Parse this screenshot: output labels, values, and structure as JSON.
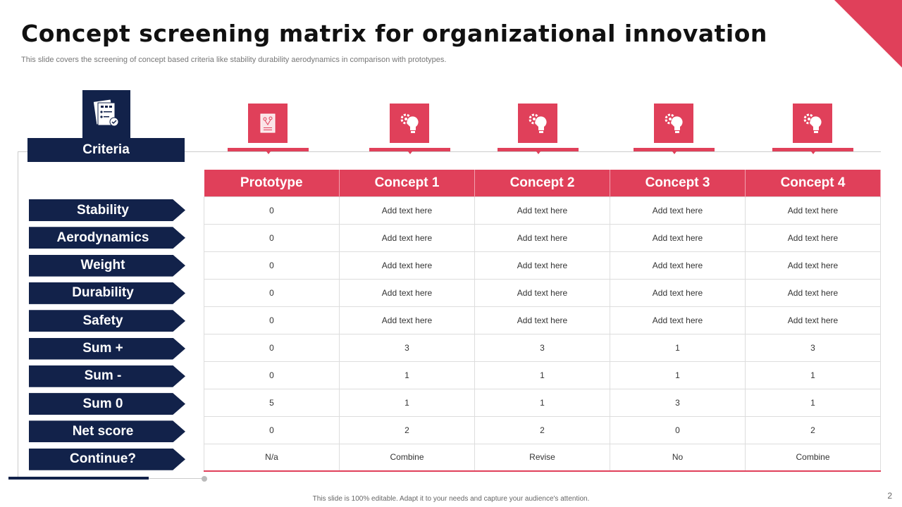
{
  "title": "Concept screening matrix for organizational innovation",
  "subtitle": "This slide covers the screening of concept based criteria like stability durability aerodynamics in comparison with prototypes.",
  "criteria_header": "Criteria",
  "columns": [
    "Prototype",
    "Concept 1",
    "Concept 2",
    "Concept 3",
    "Concept 4"
  ],
  "column_icons": [
    "prototype-document-icon",
    "gear-bulb-icon",
    "bulb-network-icon",
    "head-bulb-icon",
    "gear-bulb-icon"
  ],
  "rows": [
    {
      "label": "Stability",
      "cells": [
        "0",
        "Add text here",
        "Add text here",
        "Add text here",
        "Add text here"
      ]
    },
    {
      "label": "Aerodynamics",
      "cells": [
        "0",
        "Add text here",
        "Add text here",
        "Add text here",
        "Add text here"
      ]
    },
    {
      "label": "Weight",
      "cells": [
        "0",
        "Add text here",
        "Add text here",
        "Add text here",
        "Add text here"
      ]
    },
    {
      "label": "Durability",
      "cells": [
        "0",
        "Add text here",
        "Add text here",
        "Add text here",
        "Add text here"
      ]
    },
    {
      "label": "Safety",
      "cells": [
        "0",
        "Add text here",
        "Add text here",
        "Add text here",
        "Add text here"
      ]
    },
    {
      "label": "Sum +",
      "cells": [
        "0",
        "3",
        "3",
        "1",
        "3"
      ]
    },
    {
      "label": "Sum -",
      "cells": [
        "0",
        "1",
        "1",
        "1",
        "1"
      ]
    },
    {
      "label": "Sum 0",
      "cells": [
        "5",
        "1",
        "1",
        "3",
        "1"
      ]
    },
    {
      "label": "Net score",
      "cells": [
        "0",
        "2",
        "2",
        "0",
        "2"
      ]
    },
    {
      "label": "Continue?",
      "cells": [
        "N/a",
        "Combine",
        "Revise",
        "No",
        "Combine"
      ]
    }
  ],
  "footer": "This slide is 100% editable. Adapt it to your needs and capture your audience's attention.",
  "page_number": "2",
  "colors": {
    "navy": "#12224a",
    "red": "#e0405a"
  }
}
